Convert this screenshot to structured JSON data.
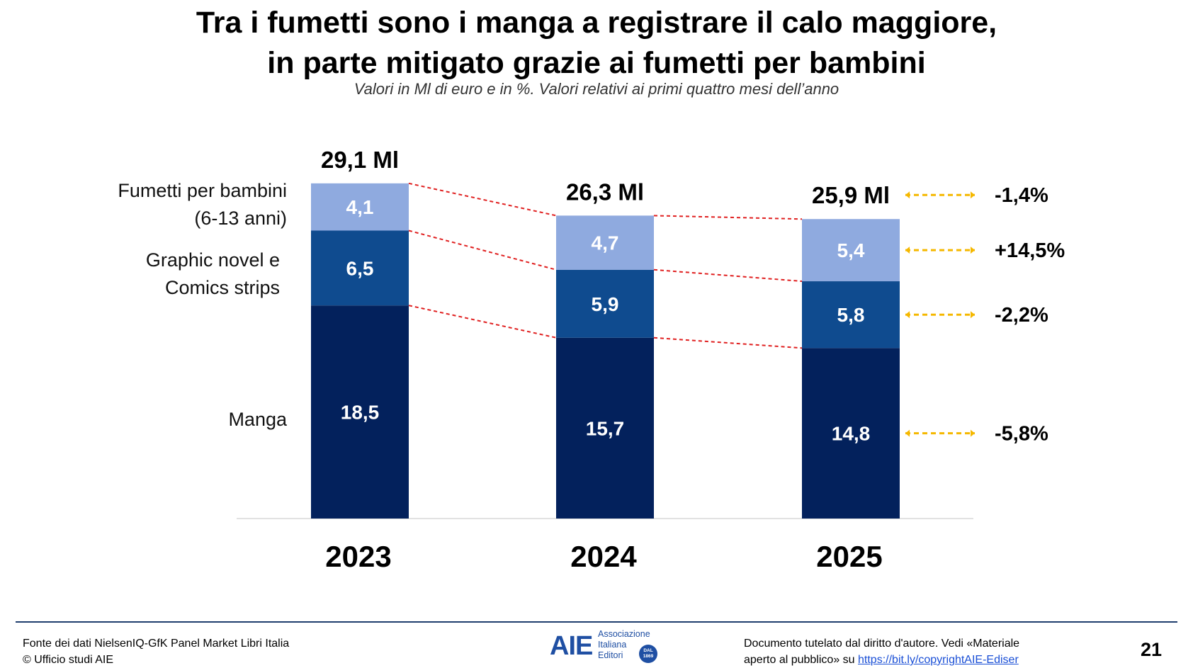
{
  "header": {
    "title_line1": "Tra i fumetti sono i manga a registrare il calo maggiore,",
    "title_line2": "in parte mitigato grazie ai fumetti per bambini"
  },
  "chart_data": {
    "type": "bar",
    "stacked": true,
    "title": "Tra i fumetti sono i manga a registrare il calo maggiore, in parte mitigato grazie ai fumetti per bambini",
    "subtitle": "Valori in Ml di euro e in %. Valori relativi ai primi quattro mesi dell’anno",
    "categories": [
      "2023",
      "2024",
      "2025"
    ],
    "series": [
      {
        "name": "Manga",
        "values": [
          18.5,
          15.7,
          14.8
        ],
        "labels": [
          "18,5",
          "15,7",
          "14,8"
        ],
        "change": "-5,8%",
        "color": "#03215c"
      },
      {
        "name": "Graphic novel e Comics strips",
        "values": [
          6.5,
          5.9,
          5.8
        ],
        "labels": [
          "6,5",
          "5,9",
          "5,8"
        ],
        "change": "-2,2%",
        "color": "#0f4b8f"
      },
      {
        "name": "Fumetti per bambini (6-13 anni)",
        "values": [
          4.1,
          4.7,
          5.4
        ],
        "labels": [
          "4,1",
          "4,7",
          "5,4"
        ],
        "change": "+14,5%",
        "color": "#8faadf"
      }
    ],
    "totals": [
      29.1,
      26.3,
      25.9
    ],
    "total_labels": [
      "29,1 Ml",
      "26,3 Ml",
      "25,9 Ml"
    ],
    "total_change": "-1,4%",
    "ylim": [
      0,
      30
    ],
    "connector_color": "#e02020",
    "arrow_color": "#f5b800",
    "series_labels": {
      "kids_line1": "Fumetti per bambini",
      "kids_line2": "(6-13 anni)",
      "graphic_line1": "Graphic novel e",
      "graphic_line2": "Comics strips",
      "manga": "Manga"
    }
  },
  "footer": {
    "source_line1": "Fonte dei dati NielsenIQ-GfK Panel Market Libri Italia",
    "source_line2": "© Ufficio studi AIE",
    "logo_mark": "AIE",
    "logo_line1": "Associazione",
    "logo_line2": "Italiana",
    "logo_line3": "Editori",
    "logo_badge_line1": "DAL",
    "logo_badge_line2": "1869",
    "copyright_line1": "Documento tutelato dal diritto d'autore. Vedi «Materiale",
    "copyright_line2_prefix": "aperto al pubblico» su",
    "copyright_link": "https://bit.ly/copyrightAIE-Ediser",
    "page_number": "21"
  }
}
